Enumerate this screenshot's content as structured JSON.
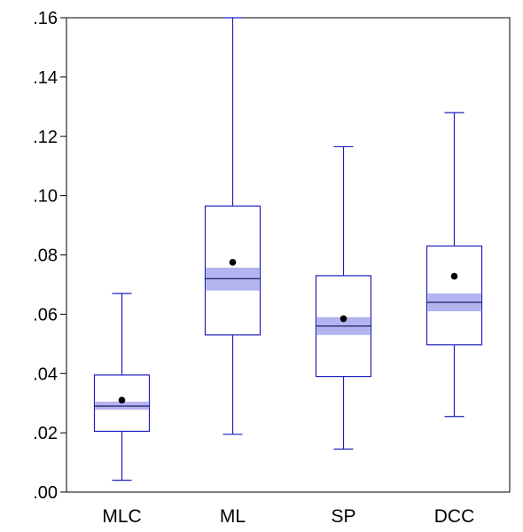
{
  "chart_data": {
    "type": "box",
    "categories": [
      "MLC",
      "ML",
      "SP",
      "DCC"
    ],
    "ylim": [
      0.0,
      0.16
    ],
    "y_ticks": [
      ".00",
      ".02",
      ".04",
      ".06",
      ".08",
      ".10",
      ".12",
      ".14",
      ".16"
    ],
    "y_tick_values": [
      0.0,
      0.02,
      0.04,
      0.06,
      0.08,
      0.1,
      0.12,
      0.14,
      0.16
    ],
    "grid": false,
    "boxes": [
      {
        "name": "MLC",
        "whisker_low": 0.004,
        "q1": 0.0205,
        "median": 0.029,
        "q3": 0.0395,
        "whisker_high": 0.067,
        "mean": 0.031,
        "ci_low": 0.0278,
        "ci_high": 0.0305
      },
      {
        "name": "ML",
        "whisker_low": 0.0195,
        "q1": 0.053,
        "median": 0.072,
        "q3": 0.0965,
        "whisker_high": 0.16,
        "mean": 0.0775,
        "ci_low": 0.068,
        "ci_high": 0.0757
      },
      {
        "name": "SP",
        "whisker_low": 0.0145,
        "q1": 0.039,
        "median": 0.056,
        "q3": 0.073,
        "whisker_high": 0.1165,
        "mean": 0.0585,
        "ci_low": 0.053,
        "ci_high": 0.059
      },
      {
        "name": "DCC",
        "whisker_low": 0.0255,
        "q1": 0.0497,
        "median": 0.064,
        "q3": 0.083,
        "whisker_high": 0.128,
        "mean": 0.0728,
        "ci_low": 0.061,
        "ci_high": 0.067
      }
    ],
    "colors": {
      "box": "#1f1fbf",
      "ci_band": "#b3b3ef",
      "median": "#1a1a60",
      "mean": "#000000",
      "axis": "#000000"
    }
  }
}
